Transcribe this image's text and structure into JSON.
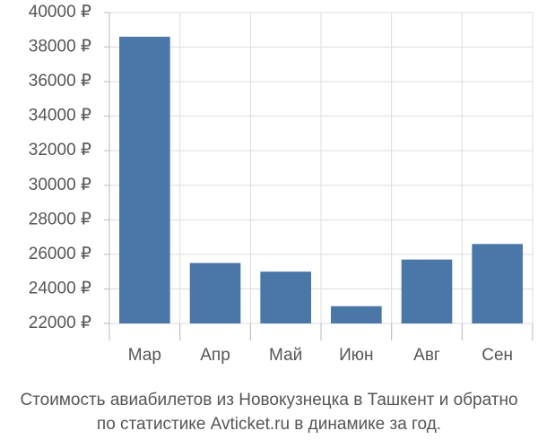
{
  "chart_data": {
    "type": "bar",
    "categories": [
      "Мар",
      "Апр",
      "Май",
      "Июн",
      "Авг",
      "Сен"
    ],
    "values": [
      38600,
      25500,
      25000,
      23000,
      25700,
      26600
    ],
    "color": "#4a76a8",
    "ylim": [
      22000,
      40000
    ],
    "yticks": [
      {
        "value": 22000,
        "label": "22000 ₽"
      },
      {
        "value": 24000,
        "label": "24000 ₽"
      },
      {
        "value": 26000,
        "label": "26000 ₽"
      },
      {
        "value": 28000,
        "label": "28000 ₽"
      },
      {
        "value": 30000,
        "label": "30000 ₽"
      },
      {
        "value": 32000,
        "label": "32000 ₽"
      },
      {
        "value": 34000,
        "label": "34000 ₽"
      },
      {
        "value": 36000,
        "label": "36000 ₽"
      },
      {
        "value": 38000,
        "label": "38000 ₽"
      },
      {
        "value": 40000,
        "label": "40000 ₽"
      }
    ],
    "grid": true,
    "caption": [
      "Стоимость авиабилетов из Новокузнецка в Ташкент и обратно",
      "по статистике Avticket.ru в динамике за год."
    ]
  }
}
